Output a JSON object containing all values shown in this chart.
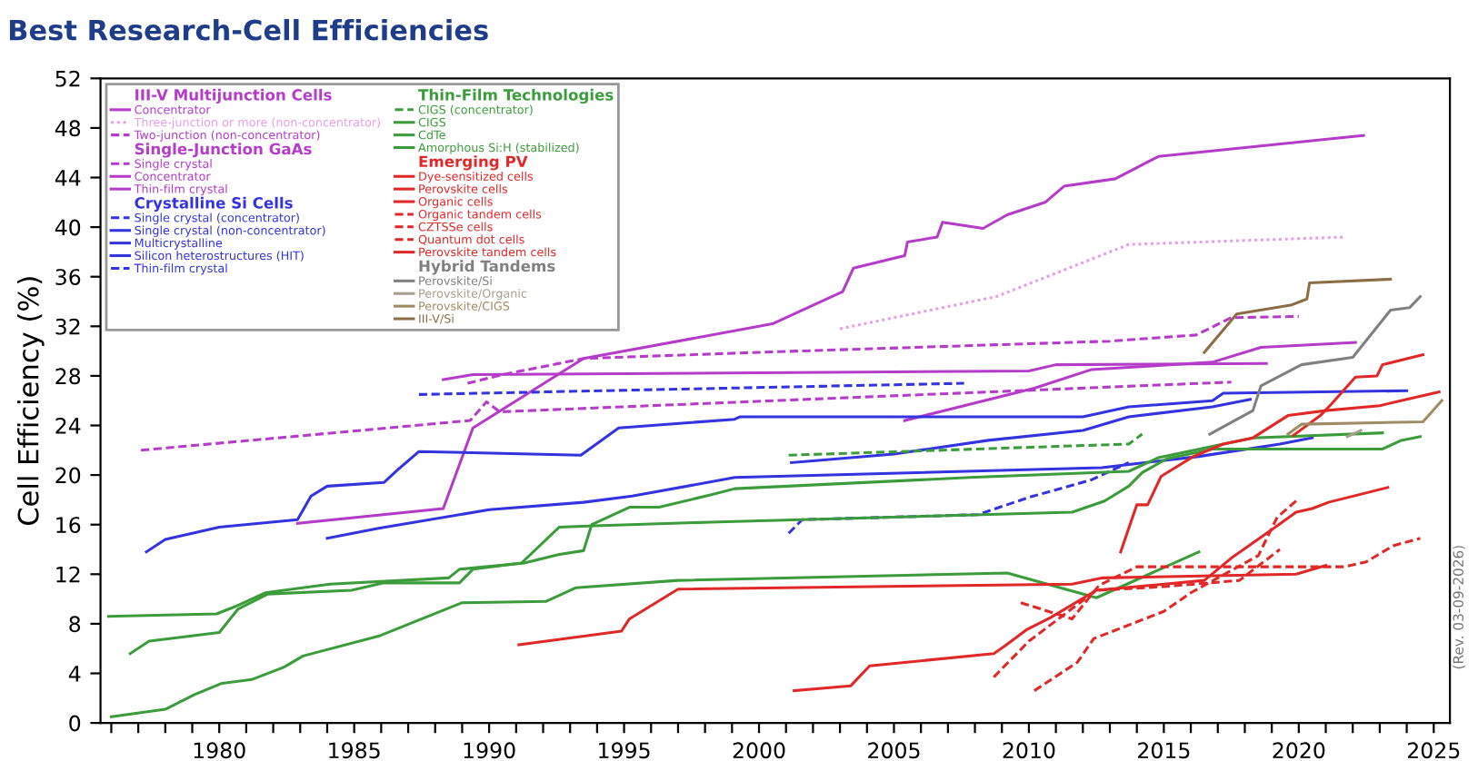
{
  "chart_data": {
    "type": "line",
    "title": "Best Research-Cell Efficiencies",
    "ylabel": "Cell Efficiency (%)",
    "xlim": [
      1975.6,
      2025.6
    ],
    "ylim": [
      0,
      52
    ],
    "xticks": [
      {
        "value": 1976,
        "label": null
      },
      {
        "value": 1977,
        "label": null
      },
      {
        "value": 1978,
        "label": null
      },
      {
        "value": 1979,
        "label": null
      },
      1980,
      {
        "value": 1981,
        "label": null
      },
      {
        "value": 1982,
        "label": null
      },
      {
        "value": 1983,
        "label": null
      },
      {
        "value": 1984,
        "label": null
      },
      1985,
      {
        "value": 1986,
        "label": null
      },
      {
        "value": 1987,
        "label": null
      },
      {
        "value": 1988,
        "label": null
      },
      {
        "value": 1989,
        "label": null
      },
      1990,
      {
        "value": 1991,
        "label": null
      },
      {
        "value": 1992,
        "label": null
      },
      {
        "value": 1993,
        "label": null
      },
      {
        "value": 1994,
        "label": null
      },
      1995,
      {
        "value": 1996,
        "label": null
      },
      {
        "value": 1997,
        "label": null
      },
      {
        "value": 1998,
        "label": null
      },
      {
        "value": 1999,
        "label": null
      },
      2000,
      {
        "value": 2001,
        "label": null
      },
      {
        "value": 2002,
        "label": null
      },
      {
        "value": 2003,
        "label": null
      },
      {
        "value": 2004,
        "label": null
      },
      2005,
      {
        "value": 2006,
        "label": null
      },
      {
        "value": 2007,
        "label": null
      },
      {
        "value": 2008,
        "label": null
      },
      {
        "value": 2009,
        "label": null
      },
      2010,
      {
        "value": 2011,
        "label": null
      },
      {
        "value": 2012,
        "label": null
      },
      {
        "value": 2013,
        "label": null
      },
      {
        "value": 2014,
        "label": null
      },
      2015,
      {
        "value": 2016,
        "label": null
      },
      {
        "value": 2017,
        "label": null
      },
      {
        "value": 2018,
        "label": null
      },
      {
        "value": 2019,
        "label": null
      },
      2020,
      {
        "value": 2021,
        "label": null
      },
      {
        "value": 2022,
        "label": null
      },
      {
        "value": 2023,
        "label": null
      },
      {
        "value": 2024,
        "label": null
      },
      2025
    ],
    "yticks": [
      0,
      4,
      8,
      12,
      16,
      20,
      24,
      28,
      32,
      36,
      40,
      44,
      48,
      52
    ],
    "grid": false,
    "legend": "top left",
    "marker": "none",
    "annotations": [
      "III-V Multijunction Cells",
      "Single-Junction GaAs",
      "Crystalline Si Cells",
      "Thin-Film Technologies",
      "Emerging PV",
      "Hybrid Tandems",
      "(Rev. 03-09-2026)"
    ],
    "series": [
      {
        "name": "Concentrator",
        "color": "#b43cc8",
        "line_style": "solid",
        "x": [
          1982.9,
          1988.3,
          1989.4,
          1993.5,
          2000.5,
          2003.1,
          2003.5,
          2005.4,
          2005.5,
          2006.6,
          2006.8,
          2008.3,
          2009.2,
          2010.6,
          2011.3,
          2013.2,
          2014.8,
          2022.4
        ],
        "values": [
          16.1,
          17.3,
          23.8,
          29.4,
          32.2,
          34.8,
          36.7,
          37.7,
          38.8,
          39.2,
          40.4,
          39.9,
          41.0,
          42.0,
          43.3,
          43.9,
          45.7,
          47.4
        ]
      },
      {
        "name": "Three-junction or more (non-concentrator)",
        "color": "#e6a0e6",
        "line_style": "dotted",
        "x": [
          2003.0,
          2008.8,
          2013.7,
          2021.7
        ],
        "values": [
          31.8,
          34.4,
          38.6,
          39.2
        ]
      },
      {
        "name": "Two-junction (non-concentrator)",
        "color": "#b43cc8",
        "line_style": "dashed",
        "x": [
          1989.2,
          1990.5,
          1993.5,
          2000.0,
          2013.0,
          2016.2,
          2017.5,
          2020.0
        ],
        "values": [
          27.4,
          28.1,
          29.4,
          29.9,
          30.8,
          31.3,
          32.7,
          32.8
        ]
      },
      {
        "name": "Single crystal",
        "color": "#b43cc8",
        "line_style": "dashed",
        "x": [
          1977.1,
          1989.3,
          1989.9,
          1990.4,
          2017.5
        ],
        "values": [
          22.0,
          24.4,
          25.9,
          25.1,
          27.5
        ]
      },
      {
        "name": "Concentrator",
        "color": "#b43cc8",
        "line_style": "solid",
        "x": [
          1988.3,
          1989.4,
          2010.0,
          2011.0,
          2018.8
        ],
        "values": [
          27.7,
          28.1,
          28.4,
          28.9,
          29.0
        ]
      },
      {
        "name": "Thin-film crystal",
        "color": "#b43cc8",
        "line_style": "solid",
        "x": [
          2005.4,
          2010.2,
          2012.3,
          2016.8,
          2018.6,
          2022.1
        ],
        "values": [
          24.4,
          27.0,
          28.5,
          29.1,
          30.3,
          30.7
        ]
      },
      {
        "name": "Single crystal (concentrator)",
        "color": "#3333e0",
        "line_style": "dashed",
        "x": [
          1987.4,
          2007.6
        ],
        "values": [
          26.5,
          27.4
        ]
      },
      {
        "name": "Single crystal (non-concentrator)",
        "color": "#3333e0",
        "line_style": "solid",
        "x": [
          1977.3,
          1978.0,
          1980.0,
          1982.9,
          1983.4,
          1984.0,
          1986.1,
          1986.6,
          1987.4,
          1993.4,
          1994.8,
          1999.1,
          1999.3,
          2012.0,
          2013.7,
          2016.8,
          2017.2,
          2024.0
        ],
        "values": [
          13.8,
          14.8,
          15.8,
          16.4,
          18.3,
          19.1,
          19.4,
          20.4,
          21.9,
          21.6,
          23.8,
          24.5,
          24.7,
          24.7,
          25.5,
          26.0,
          26.6,
          26.8
        ]
      },
      {
        "name": "Multicrystalline",
        "color": "#3333e0",
        "line_style": "solid",
        "x": [
          1984.0,
          1985.9,
          1990.0,
          1993.5,
          1995.3,
          1999.1,
          2012.7,
          2016.3,
          2019.3,
          2020.5
        ],
        "values": [
          14.9,
          15.7,
          17.2,
          17.8,
          18.3,
          19.8,
          20.6,
          21.5,
          22.5,
          23.0
        ]
      },
      {
        "name": "Silicon heterostructures (HIT)",
        "color": "#3333e0",
        "line_style": "solid",
        "x": [
          2001.2,
          2005.0,
          2008.5,
          2012.0,
          2013.7,
          2016.8,
          2018.2
        ],
        "values": [
          21.0,
          21.7,
          22.8,
          23.6,
          24.7,
          25.5,
          26.1
        ]
      },
      {
        "name": "Thin-film crystal",
        "color": "#3333e0",
        "line_style": "dashed",
        "x": [
          2001.1,
          2001.6,
          2008.1,
          2010.0,
          2012.3,
          2013.7
        ],
        "values": [
          15.3,
          16.4,
          16.8,
          18.2,
          19.6,
          21.0
        ]
      },
      {
        "name": "CIGS (concentrator)",
        "color": "#3c9c3c",
        "line_style": "dashed",
        "x": [
          2001.1,
          2013.7,
          2014.2
        ],
        "values": [
          21.6,
          22.5,
          23.3
        ]
      },
      {
        "name": "CIGS",
        "color": "#3c9c3c",
        "line_style": "solid",
        "x": [
          1975.9,
          1979.9,
          1980.6,
          1981.7,
          1984.1,
          1988.5,
          1988.9,
          1991.3,
          1992.6,
          1993.5,
          1993.8,
          1994.1,
          1995.2,
          1996.3,
          1998.2,
          1999.1,
          2007.8,
          2013.7,
          2014.8,
          2017.2,
          2018.3,
          2023.1
        ],
        "values": [
          8.6,
          8.8,
          9.4,
          10.5,
          11.2,
          11.7,
          12.4,
          12.9,
          13.6,
          13.9,
          16.0,
          16.3,
          17.4,
          17.4,
          18.4,
          18.9,
          19.8,
          20.3,
          21.4,
          22.5,
          23.0,
          23.4
        ]
      },
      {
        "name": "CdTe",
        "color": "#3c9c3c",
        "line_style": "solid",
        "x": [
          1976.7,
          1977.4,
          1980.0,
          1980.7,
          1981.8,
          1984.9,
          1986.1,
          1988.9,
          1989.4,
          1991.2,
          1992.6,
          1993.9,
          1998.2,
          2011.6,
          2012.8,
          2013.7,
          2014.2,
          2015.1,
          2016.8,
          2023.1,
          2023.8,
          2024.5
        ],
        "values": [
          5.6,
          6.6,
          7.3,
          9.2,
          10.4,
          10.7,
          11.3,
          11.3,
          12.4,
          12.9,
          15.8,
          15.9,
          16.2,
          17.0,
          17.9,
          19.1,
          20.2,
          21.3,
          22.1,
          22.1,
          22.8,
          23.1
        ]
      },
      {
        "name": "Amorphous Si:H (stabilized)",
        "color": "#3c9c3c",
        "line_style": "solid",
        "x": [
          1976.0,
          1978.0,
          1979.1,
          1980.1,
          1981.2,
          1982.4,
          1983.1,
          1985.9,
          1989.0,
          1992.1,
          1993.2,
          1997.0,
          2009.2,
          2012.5,
          2016.3
        ],
        "values": [
          0.5,
          1.1,
          2.3,
          3.2,
          3.5,
          4.5,
          5.4,
          7.0,
          9.7,
          9.8,
          10.9,
          11.5,
          12.1,
          10.1,
          13.8
        ]
      },
      {
        "name": "Dye-sensitized cells",
        "color": "#e02828",
        "line_style": "solid",
        "x": [
          1991.1,
          1994.9,
          1995.2,
          1997.0,
          2011.6,
          2012.7,
          2019.9,
          2021.0
        ],
        "values": [
          6.3,
          7.4,
          8.4,
          10.8,
          11.2,
          11.7,
          12.0,
          12.7
        ]
      },
      {
        "name": "Perovskite cells",
        "color": "#e02828",
        "line_style": "solid",
        "x": [
          2013.4,
          2014.0,
          2014.4,
          2014.9,
          2016.1,
          2017.2,
          2018.3,
          2019.6,
          2021.0,
          2023.0,
          2024.0,
          2025.2
        ],
        "values": [
          13.8,
          17.6,
          17.6,
          19.9,
          21.5,
          22.5,
          23.0,
          24.8,
          25.2,
          25.6,
          26.1,
          26.7
        ]
      },
      {
        "name": "Organic cells",
        "color": "#e02828",
        "line_style": "solid",
        "x": [
          2001.3,
          2003.4,
          2004.1,
          2008.7,
          2009.1,
          2009.9,
          2010.8,
          2012.5,
          2016.5,
          2017.5,
          2019.0,
          2019.9,
          2020.5,
          2021.1,
          2023.3
        ],
        "values": [
          2.6,
          3.0,
          4.6,
          5.6,
          6.2,
          7.5,
          8.5,
          10.7,
          11.5,
          13.3,
          15.6,
          17.0,
          17.3,
          17.8,
          19.0
        ]
      },
      {
        "name": "Organic tandem cells",
        "color": "#e02828",
        "line_style": "dashed",
        "x": [
          2008.7,
          2010.0,
          2012.5,
          2015.0,
          2017.8,
          2019.3
        ],
        "values": [
          3.7,
          6.6,
          10.7,
          11.0,
          11.5,
          14.0
        ]
      },
      {
        "name": "CZTSSe cells",
        "color": "#e02828",
        "line_style": "dashed",
        "x": [
          2009.7,
          2011.6,
          2012.6,
          2014.0,
          2021.7,
          2022.5,
          2023.5,
          2024.5
        ],
        "values": [
          9.7,
          8.4,
          11.1,
          12.6,
          12.6,
          13.0,
          14.3,
          14.9
        ]
      },
      {
        "name": "Quantum dot cells",
        "color": "#e02828",
        "line_style": "dashed",
        "x": [
          2010.2,
          2011.8,
          2012.4,
          2015.0,
          2016.0,
          2017.0,
          2018.5,
          2019.2,
          2020.0
        ],
        "values": [
          2.6,
          4.9,
          6.8,
          9.0,
          10.5,
          11.7,
          13.5,
          16.6,
          18.1
        ]
      },
      {
        "name": "Perovskite tandem cells",
        "color": "#e02828",
        "line_style": "solid",
        "x": [
          2019.8,
          2020.8,
          2021.2,
          2022.1,
          2022.9,
          2023.1,
          2024.6
        ],
        "values": [
          23.2,
          24.8,
          25.7,
          27.9,
          28.0,
          28.9,
          29.7
        ]
      },
      {
        "name": "Perovskite/Si",
        "color": "#808080",
        "line_style": "solid",
        "x": [
          2016.7,
          2018.3,
          2018.6,
          2020.1,
          2022.0,
          2023.4,
          2024.1,
          2024.5
        ],
        "values": [
          23.3,
          25.2,
          27.2,
          28.9,
          29.5,
          33.3,
          33.5,
          34.4
        ]
      },
      {
        "name": "Perovskite/Organic",
        "color": "#a89f8c",
        "line_style": "solid",
        "x": [
          2021.8,
          2022.3
        ],
        "values": [
          23.1,
          23.6
        ]
      },
      {
        "name": "Perovskite/CIGS",
        "color": "#a08c64",
        "line_style": "solid",
        "x": [
          2019.6,
          2020.1,
          2024.6,
          2025.3
        ],
        "values": [
          23.3,
          24.1,
          24.3,
          26.0
        ]
      },
      {
        "name": "III-V/Si",
        "color": "#8c6e46",
        "line_style": "solid",
        "x": [
          2016.5,
          2017.7,
          2019.7,
          2020.3,
          2020.4,
          2023.4
        ],
        "values": [
          29.9,
          33.0,
          33.7,
          34.2,
          35.5,
          35.8
        ]
      }
    ]
  }
}
